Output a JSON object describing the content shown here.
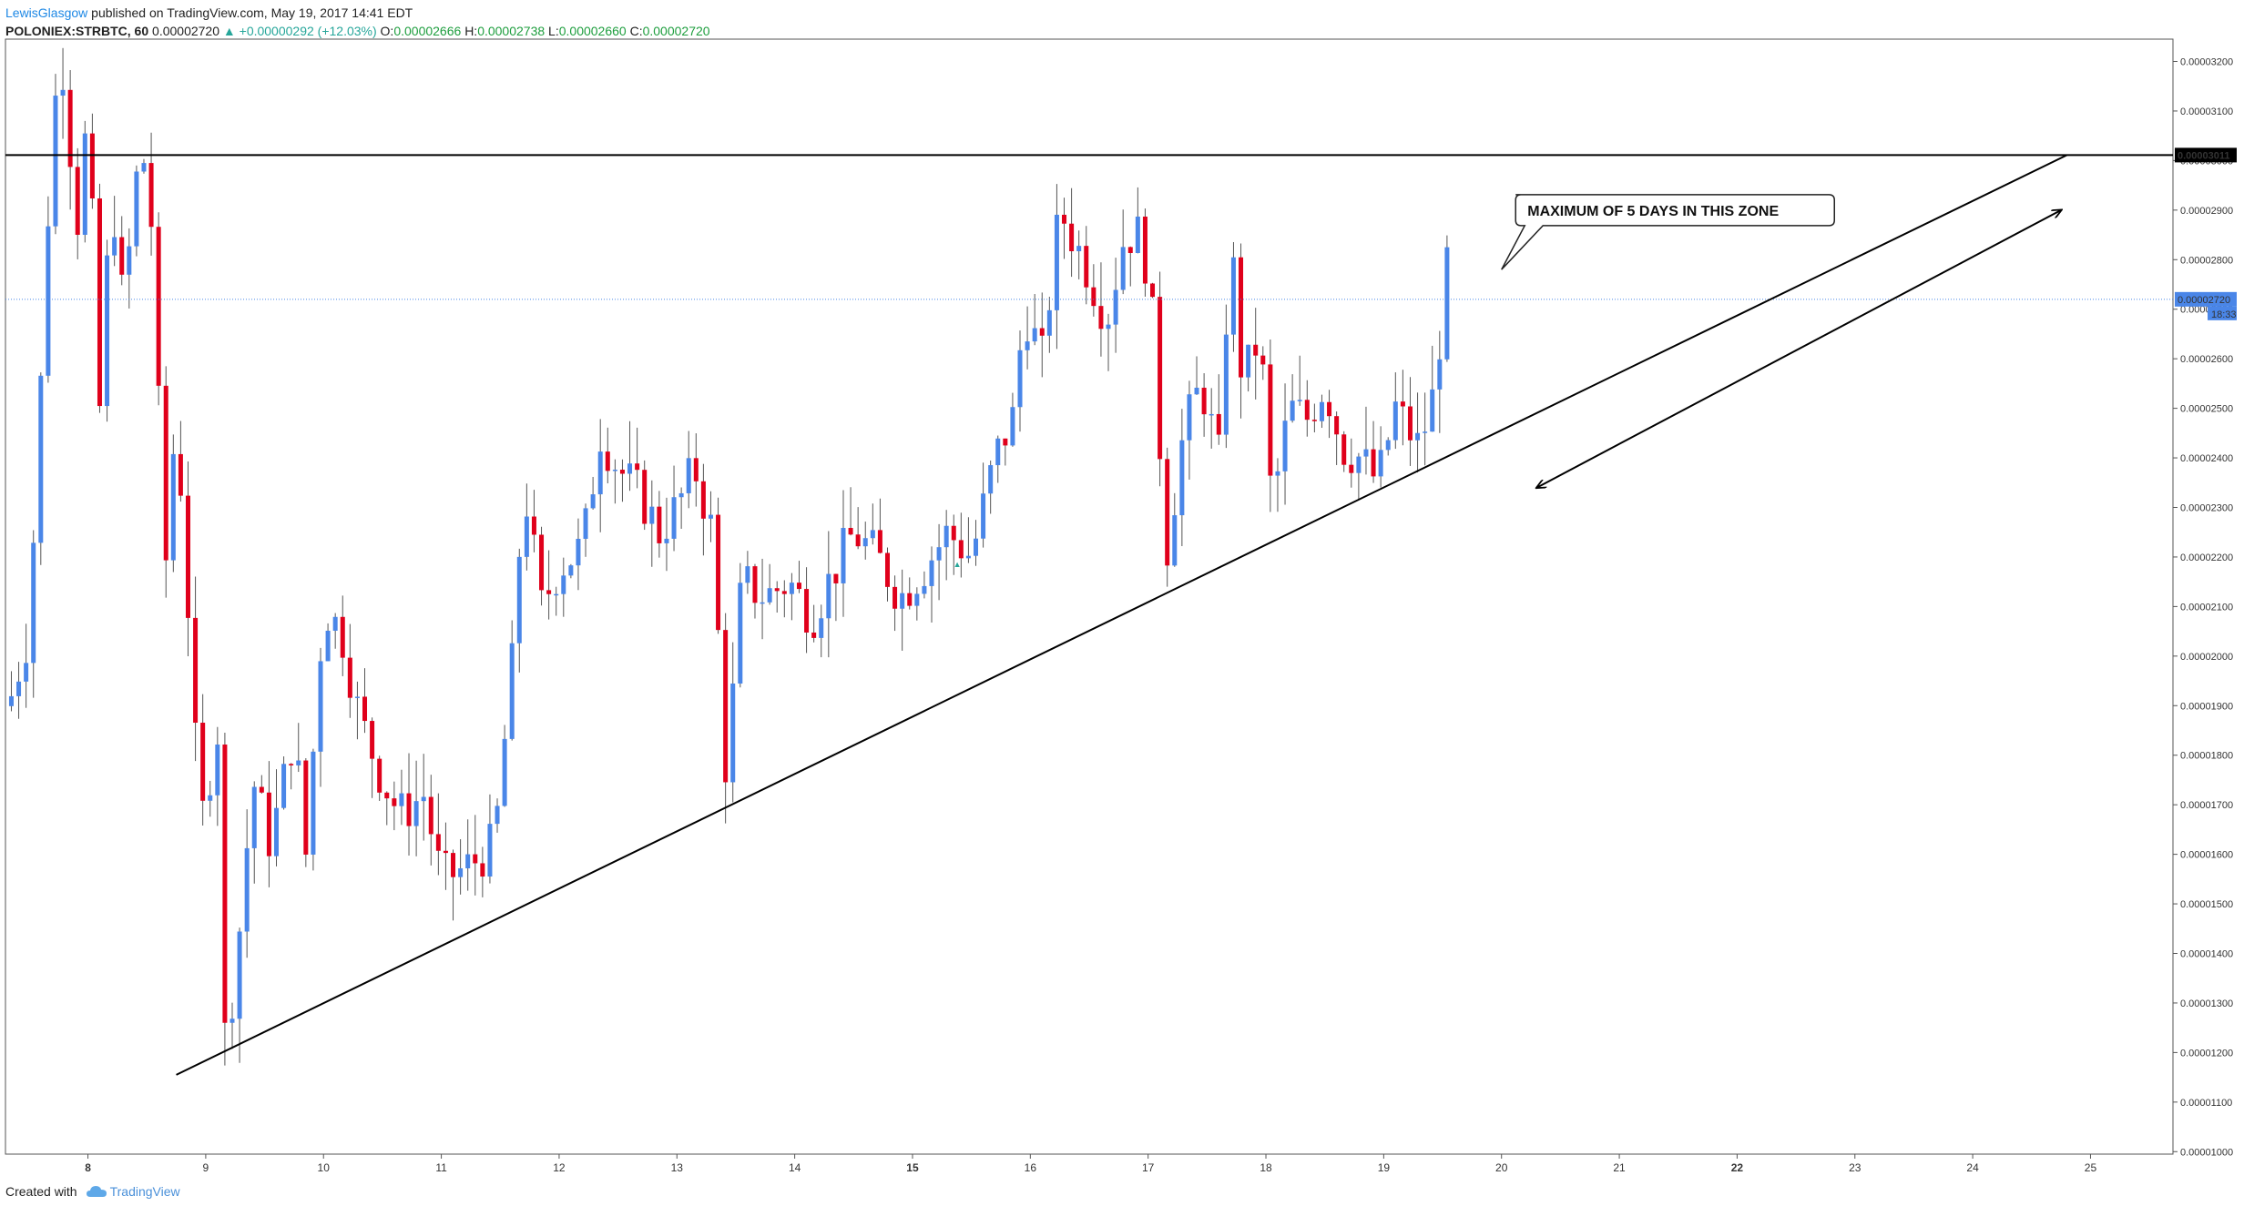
{
  "header": {
    "author": "LewisGlasgow",
    "published_text": "published on TradingView.com, May 19, 2017 14:41 EDT",
    "symbol": "POLONIEX:STRBTC, 60",
    "last": "0.00002720",
    "change": "▲ +0.00000292 (+12.03%)",
    "o_label": "O:",
    "o_value": "0.00002666",
    "h_label": "H:",
    "h_value": "0.00002738",
    "l_label": "L:",
    "l_value": "0.00002660",
    "c_label": "C:",
    "c_value": "0.00002720"
  },
  "footer": {
    "created_with": "Created with",
    "brand": "TradingView"
  },
  "colors": {
    "up": "#4a86e8",
    "down": "#e0001b",
    "price_line": "#4a86e8",
    "level_line": "#000000"
  },
  "chart_data": {
    "type": "candlestick",
    "ylim": [
      9.95e-06,
      3.245e-05
    ],
    "xlim": [
      7.3,
      25.7
    ],
    "y_ticks": [
      "0.00001000",
      "0.00001100",
      "0.00001200",
      "0.00001300",
      "0.00001400",
      "0.00001500",
      "0.00001600",
      "0.00001700",
      "0.00001800",
      "0.00001900",
      "0.00002000",
      "0.00002100",
      "0.00002200",
      "0.00002300",
      "0.00002400",
      "0.00002500",
      "0.00002600",
      "0.00002700",
      "0.00002800",
      "0.00002900",
      "0.00003000",
      "0.00003100",
      "0.00003200"
    ],
    "x_ticks": [
      {
        "label": "8",
        "day": 8,
        "bold": true
      },
      {
        "label": "9",
        "day": 9
      },
      {
        "label": "10",
        "day": 10
      },
      {
        "label": "11",
        "day": 11
      },
      {
        "label": "12",
        "day": 12
      },
      {
        "label": "13",
        "day": 13
      },
      {
        "label": "14",
        "day": 14
      },
      {
        "label": "15",
        "day": 15,
        "bold": true
      },
      {
        "label": "16",
        "day": 16
      },
      {
        "label": "17",
        "day": 17
      },
      {
        "label": "18",
        "day": 18
      },
      {
        "label": "19",
        "day": 19
      },
      {
        "label": "20",
        "day": 20
      },
      {
        "label": "21",
        "day": 21
      },
      {
        "label": "22",
        "day": 22,
        "bold": true
      },
      {
        "label": "23",
        "day": 23
      },
      {
        "label": "24",
        "day": 24
      },
      {
        "label": "25",
        "day": 25
      }
    ],
    "resistance_level": {
      "value": 3.011e-05,
      "label": "0.00003011"
    },
    "last_price": {
      "value": 2.72e-05,
      "label": "0.00002720",
      "countdown": "18:33"
    },
    "trendlines": [
      {
        "x1": 8.75,
        "y1": 1.155e-05,
        "x2": 24.8,
        "y2": 3.011e-05
      },
      {
        "arrow": "both",
        "x1": 20.3,
        "y1": 2.34e-05,
        "x2": 24.75,
        "y2": 2.9e-05
      }
    ],
    "annotation": {
      "text": "MAXIMUM OF 5 DAYS IN THIS ZONE",
      "x": 20.12,
      "y": 2.9e-05,
      "pointer_x": 20.0,
      "pointer_y": 2.78e-05
    },
    "anchors": [
      [
        7.35,
        1.92e-05
      ],
      [
        7.5,
        2.05e-05
      ],
      [
        7.6,
        2.55e-05
      ],
      [
        7.7,
        3.1e-05
      ],
      [
        7.8,
        3.2e-05
      ],
      [
        7.9,
        2.85e-05
      ],
      [
        8.0,
        3.1e-05
      ],
      [
        8.1,
        2.5e-05
      ],
      [
        8.2,
        2.95e-05
      ],
      [
        8.3,
        2.7e-05
      ],
      [
        8.45,
        3.05e-05
      ],
      [
        8.55,
        2.85e-05
      ],
      [
        8.65,
        2.15e-05
      ],
      [
        8.75,
        2.5e-05
      ],
      [
        8.85,
        2.1e-05
      ],
      [
        8.95,
        1.65e-05
      ],
      [
        9.1,
        1.85e-05
      ],
      [
        9.15,
        1.22e-05
      ],
      [
        9.25,
        1.35e-05
      ],
      [
        9.4,
        1.75e-05
      ],
      [
        9.55,
        1.62e-05
      ],
      [
        9.75,
        1.85e-05
      ],
      [
        9.85,
        1.6e-05
      ],
      [
        10.0,
        2.1e-05
      ],
      [
        10.15,
        2.05e-05
      ],
      [
        10.3,
        1.88e-05
      ],
      [
        10.5,
        1.75e-05
      ],
      [
        10.65,
        1.68e-05
      ],
      [
        10.85,
        1.72e-05
      ],
      [
        11.0,
        1.55e-05
      ],
      [
        11.2,
        1.57e-05
      ],
      [
        11.45,
        1.62e-05
      ],
      [
        11.6,
        1.98e-05
      ],
      [
        11.7,
        2.35e-05
      ],
      [
        11.85,
        2.1e-05
      ],
      [
        12.0,
        2.18e-05
      ],
      [
        12.2,
        2.22e-05
      ],
      [
        12.35,
        2.45e-05
      ],
      [
        12.5,
        2.38e-05
      ],
      [
        12.7,
        2.32e-05
      ],
      [
        12.85,
        2.25e-05
      ],
      [
        13.0,
        2.3e-05
      ],
      [
        13.15,
        2.38e-05
      ],
      [
        13.3,
        2.25e-05
      ],
      [
        13.42,
        1.75e-05
      ],
      [
        13.55,
        2.15e-05
      ],
      [
        13.75,
        2.12e-05
      ],
      [
        13.95,
        2.15e-05
      ],
      [
        14.15,
        2.08e-05
      ],
      [
        14.35,
        2.18e-05
      ],
      [
        14.5,
        2.25e-05
      ],
      [
        14.7,
        2.2e-05
      ],
      [
        14.9,
        2.12e-05
      ],
      [
        15.1,
        2.18e-05
      ],
      [
        15.3,
        2.25e-05
      ],
      [
        15.5,
        2.2e-05
      ],
      [
        15.7,
        2.4e-05
      ],
      [
        15.85,
        2.48e-05
      ],
      [
        15.95,
        2.7e-05
      ],
      [
        16.1,
        2.6e-05
      ],
      [
        16.25,
        2.9e-05
      ],
      [
        16.45,
        2.8e-05
      ],
      [
        16.65,
        2.68e-05
      ],
      [
        16.8,
        2.85e-05
      ],
      [
        16.95,
        2.85e-05
      ],
      [
        17.05,
        2.65e-05
      ],
      [
        17.15,
        2.2e-05
      ],
      [
        17.3,
        2.45e-05
      ],
      [
        17.45,
        2.55e-05
      ],
      [
        17.6,
        2.4e-05
      ],
      [
        17.7,
        2.85e-05
      ],
      [
        17.8,
        2.55e-05
      ],
      [
        17.95,
        2.65e-05
      ],
      [
        18.05,
        2.3e-05
      ],
      [
        18.2,
        2.5e-05
      ],
      [
        18.35,
        2.48e-05
      ],
      [
        18.5,
        2.55e-05
      ],
      [
        18.65,
        2.42e-05
      ],
      [
        18.8,
        2.4e-05
      ],
      [
        18.95,
        2.35e-05
      ],
      [
        19.1,
        2.5e-05
      ],
      [
        19.3,
        2.42e-05
      ],
      [
        19.45,
        2.55e-05
      ],
      [
        19.52,
        2.8e-05
      ],
      [
        19.58,
        2.72e-05
      ]
    ]
  }
}
